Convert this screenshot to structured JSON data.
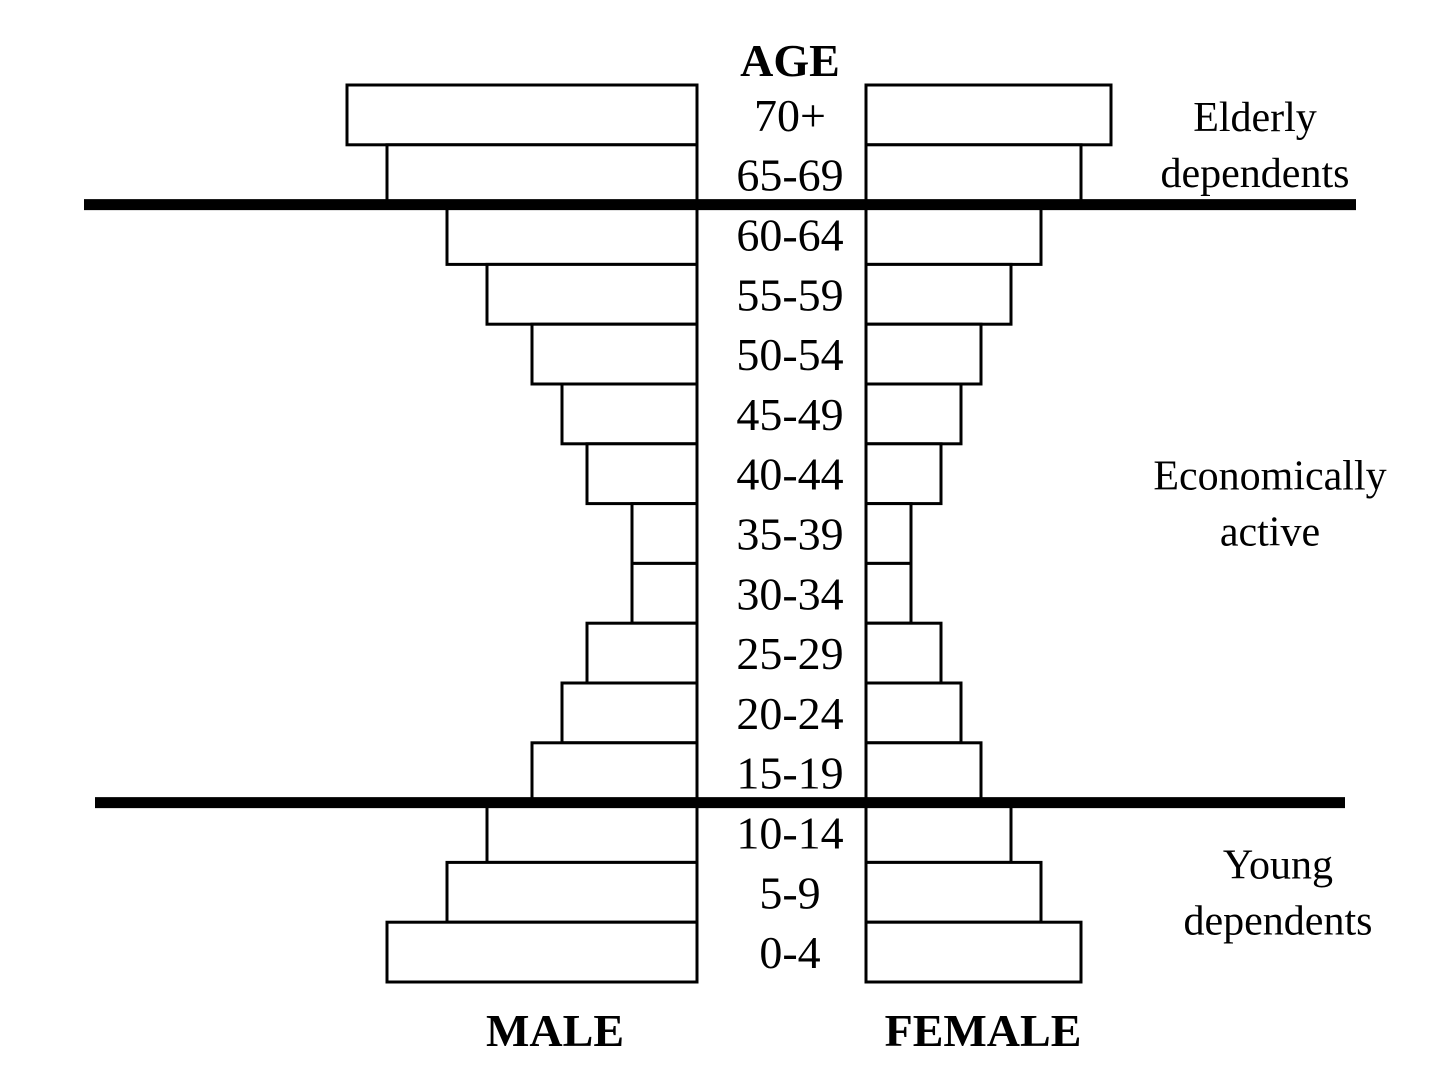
{
  "chart_data": {
    "type": "bar",
    "orientation": "horizontal",
    "layout": "population-pyramid",
    "title": "AGE",
    "categories": [
      "70+",
      "65-69",
      "60-64",
      "55-59",
      "50-54",
      "45-49",
      "40-44",
      "35-39",
      "30-34",
      "25-29",
      "20-24",
      "15-19",
      "10-14",
      "5-9",
      "0-4"
    ],
    "series": [
      {
        "name": "MALE",
        "side": "left",
        "values": [
          35,
          31,
          25,
          21,
          16.5,
          13.5,
          11,
          6.5,
          6.5,
          11,
          13.5,
          16.5,
          21,
          25,
          31
        ]
      },
      {
        "name": "FEMALE",
        "side": "right",
        "values": [
          24.5,
          21.5,
          17.5,
          14.5,
          11.5,
          9.5,
          7.5,
          4.5,
          4.5,
          7.5,
          9.5,
          11.5,
          14.5,
          17.5,
          21.5
        ]
      }
    ],
    "xlim": [
      0,
      36
    ],
    "grid": false,
    "legend": "none",
    "groups": [
      {
        "label": "Elderly dependents",
        "lines": [
          "Elderly",
          "dependents"
        ],
        "from": "65-69",
        "to": "70+"
      },
      {
        "label": "Economically active",
        "lines": [
          "Economically",
          "active"
        ],
        "from": "15-19",
        "to": "60-64"
      },
      {
        "label": "Young dependents",
        "lines": [
          "Young",
          "dependents"
        ],
        "from": "0-4",
        "to": "10-14"
      }
    ],
    "dividers_between": [
      [
        "65-69",
        "60-64"
      ],
      [
        "15-19",
        "10-14"
      ]
    ],
    "colors": {
      "bar_fill": "#ffffff",
      "bar_stroke": "#000000",
      "divider": "#000000",
      "text": "#000000"
    }
  }
}
